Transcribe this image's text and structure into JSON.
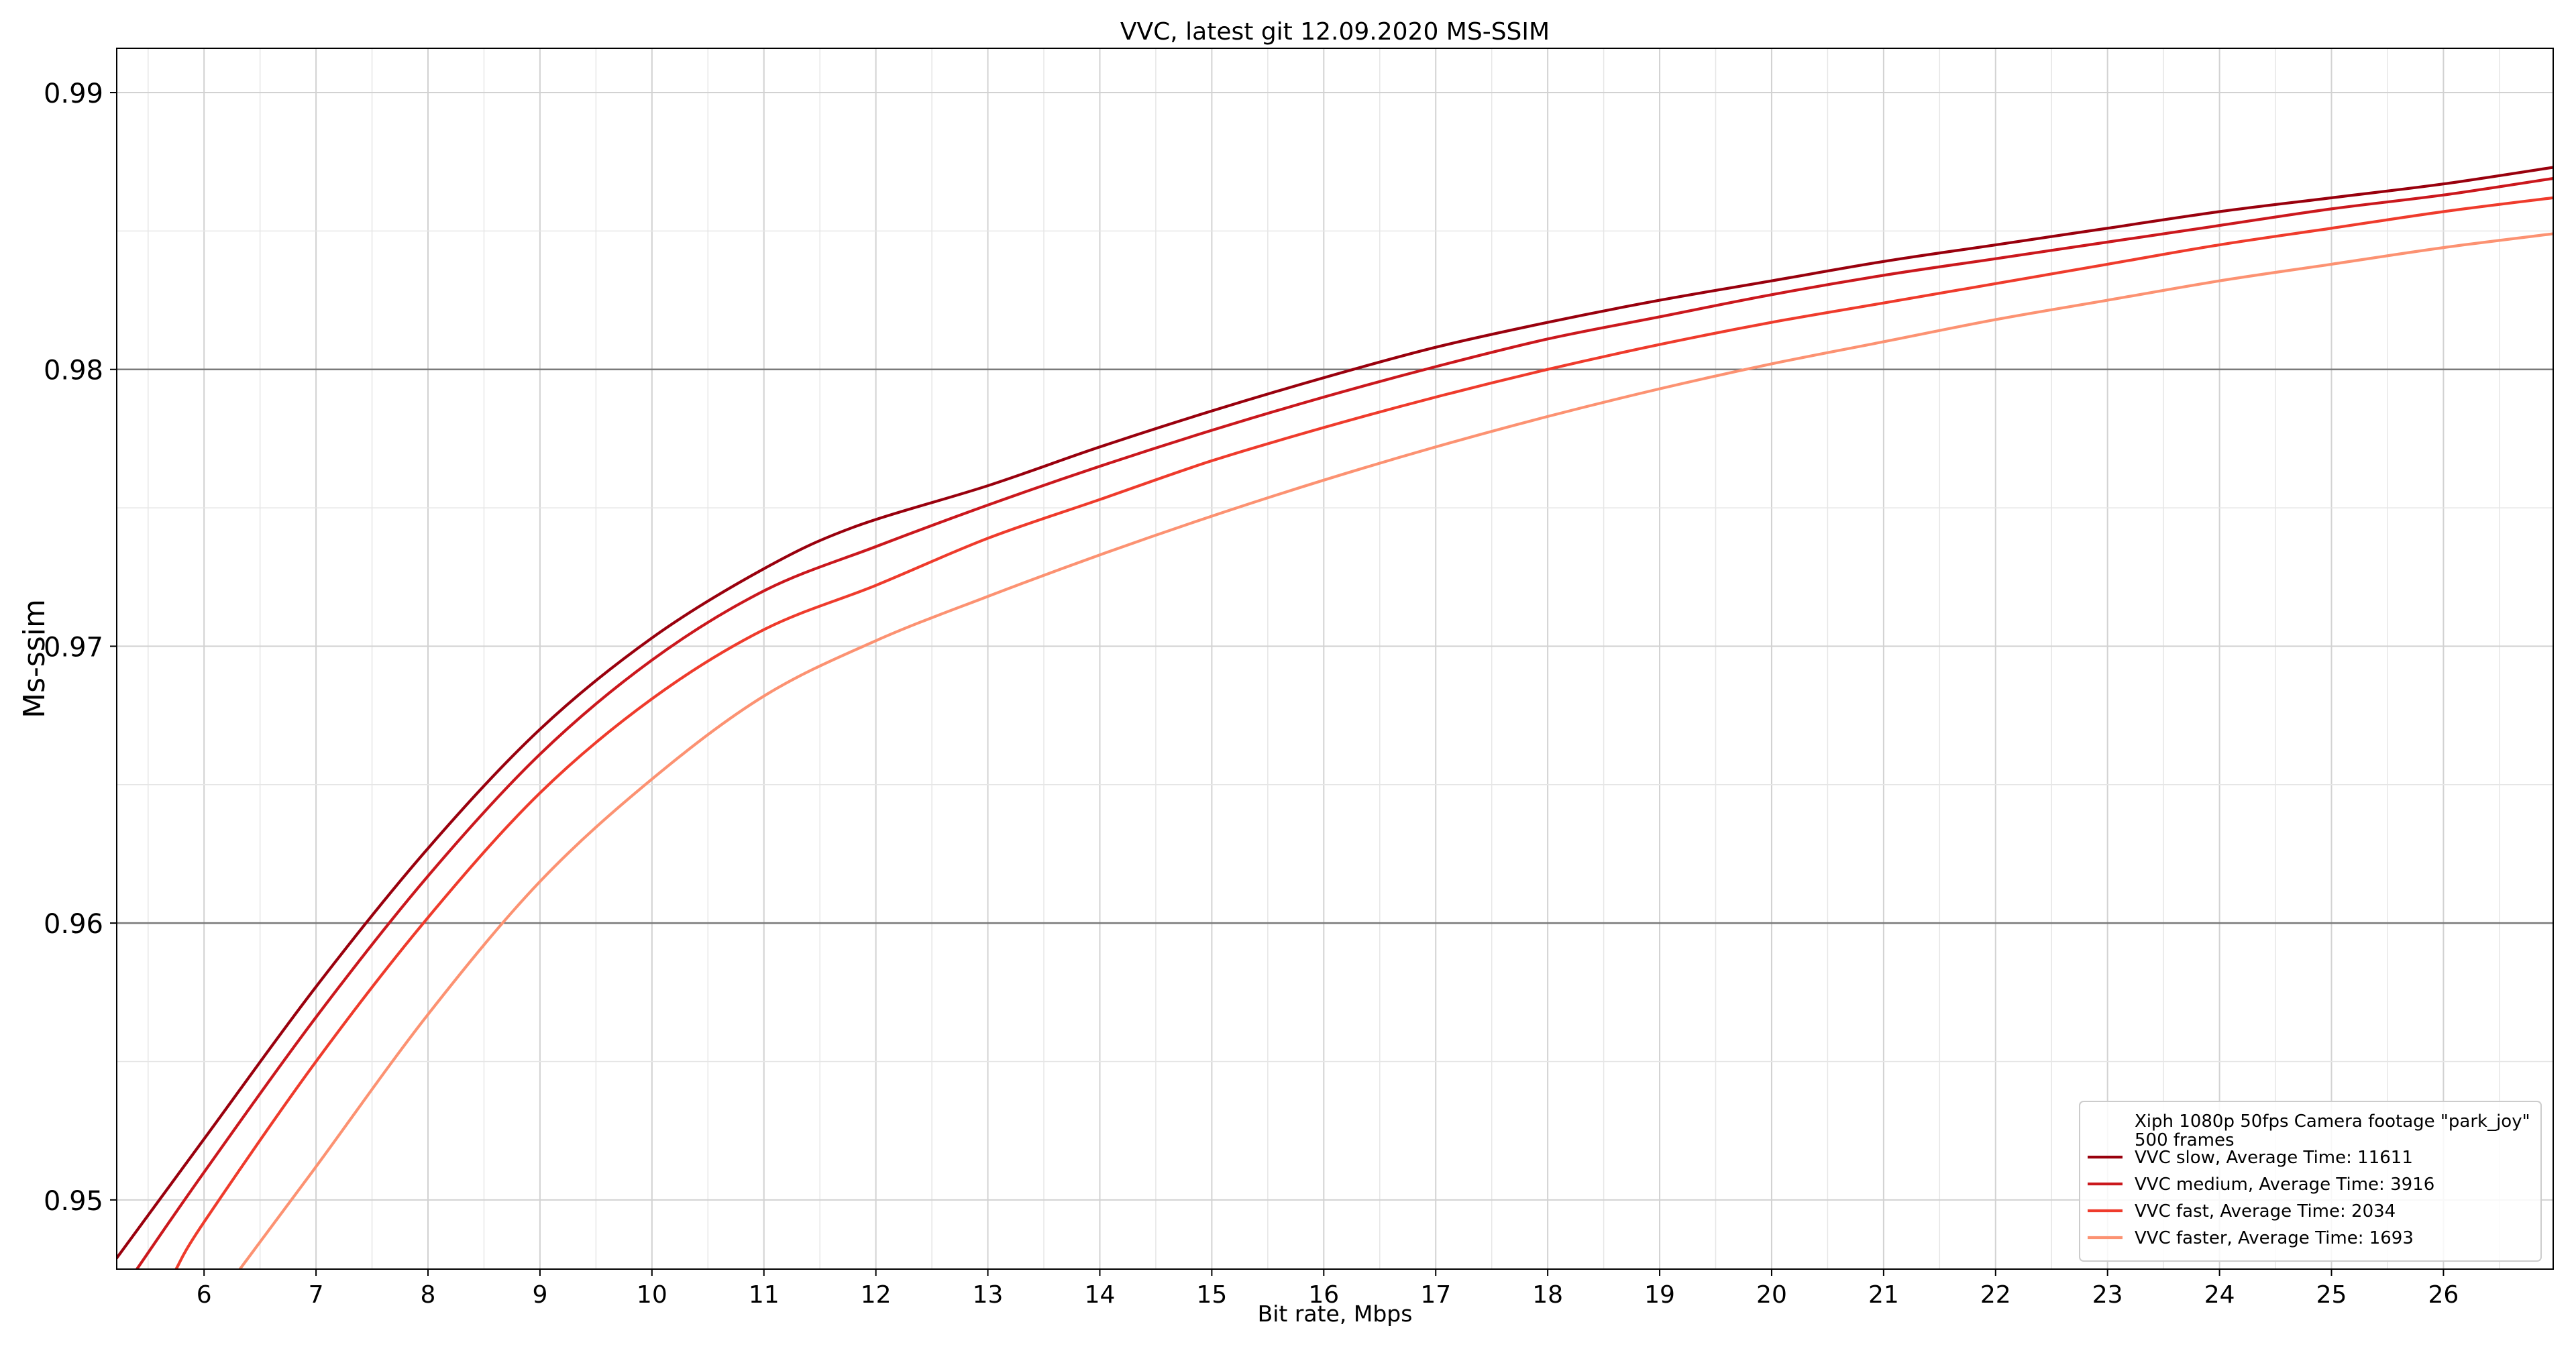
{
  "chart_data": {
    "type": "line",
    "title": "VVC, latest git 12.09.2020 MS-SSIM",
    "xlabel": "Bit rate, Mbps",
    "ylabel": "Ms-ssim",
    "xlim": [
      5.22,
      26.98
    ],
    "ylim": [
      0.9475,
      0.9916
    ],
    "x_ticks": [
      6,
      7,
      8,
      9,
      10,
      11,
      12,
      13,
      14,
      15,
      16,
      17,
      18,
      19,
      20,
      21,
      22,
      23,
      24,
      25,
      26
    ],
    "x_tick_labels": [
      "6",
      "7",
      "8",
      "9",
      "10",
      "11",
      "12",
      "13",
      "14",
      "15",
      "16",
      "17",
      "18",
      "19",
      "20",
      "21",
      "22",
      "23",
      "24",
      "25",
      "26"
    ],
    "y_ticks": [
      0.95,
      0.96,
      0.97,
      0.98,
      0.99
    ],
    "y_tick_labels": [
      "0.95",
      "0.96",
      "0.97",
      "0.98",
      "0.99"
    ],
    "x_minor_step": 0.5,
    "y_minor_step": 0.005,
    "grid": true,
    "legend_position": "bottom-right",
    "legend_header": [
      "Xiph 1080p 50fps Camera footage \"park_joy\"",
      "500 frames"
    ],
    "series": [
      {
        "name": "VVC slow, Average Time: 11611",
        "color": "#99000d",
        "x": [
          5.22,
          6.0,
          7.0,
          8.0,
          9.0,
          10.0,
          11.0,
          11.8,
          13.0,
          14.0,
          15.0,
          16.0,
          17.0,
          18.0,
          19.0,
          20.0,
          21.0,
          22.0,
          23.0,
          24.0,
          25.0,
          26.0,
          26.98
        ],
        "y": [
          0.9479,
          0.9522,
          0.9577,
          0.9627,
          0.967,
          0.9703,
          0.9728,
          0.9743,
          0.9758,
          0.9772,
          0.9785,
          0.9797,
          0.9808,
          0.9817,
          0.9825,
          0.9832,
          0.9839,
          0.9845,
          0.9851,
          0.9857,
          0.9862,
          0.9867,
          0.9873
        ]
      },
      {
        "name": "VVC medium, Average Time: 3916",
        "color": "#cb181d",
        "x": [
          5.4,
          6.0,
          7.0,
          8.0,
          9.0,
          10.0,
          11.0,
          12.0,
          13.0,
          14.0,
          15.0,
          16.0,
          17.0,
          18.0,
          19.0,
          20.0,
          21.0,
          22.0,
          23.0,
          24.0,
          25.0,
          26.0,
          26.98
        ],
        "y": [
          0.9475,
          0.951,
          0.9566,
          0.9617,
          0.9661,
          0.9695,
          0.972,
          0.9736,
          0.9751,
          0.9765,
          0.9778,
          0.979,
          0.9801,
          0.9811,
          0.9819,
          0.9827,
          0.9834,
          0.984,
          0.9846,
          0.9852,
          0.9858,
          0.9863,
          0.9869
        ]
      },
      {
        "name": "VVC fast, Average Time: 2034",
        "color": "#ef3b2c",
        "x": [
          5.75,
          6.0,
          7.0,
          8.0,
          9.0,
          10.0,
          11.0,
          12.0,
          13.0,
          14.0,
          15.0,
          16.0,
          17.0,
          18.0,
          19.0,
          20.0,
          21.0,
          22.0,
          23.0,
          24.0,
          25.0,
          26.0,
          26.98
        ],
        "y": [
          0.9475,
          0.9492,
          0.955,
          0.9602,
          0.9647,
          0.9681,
          0.9706,
          0.9722,
          0.9739,
          0.9753,
          0.9767,
          0.9779,
          0.979,
          0.98,
          0.9809,
          0.9817,
          0.9824,
          0.9831,
          0.9838,
          0.9845,
          0.9851,
          0.9857,
          0.9862
        ]
      },
      {
        "name": "VVC faster, Average Time: 1693",
        "color": "#fc9272",
        "x": [
          6.32,
          7.0,
          8.0,
          9.0,
          10.0,
          11.0,
          12.0,
          13.0,
          14.0,
          15.0,
          16.0,
          17.0,
          18.0,
          19.0,
          20.0,
          21.0,
          22.0,
          23.0,
          24.0,
          25.0,
          26.0,
          26.98
        ],
        "y": [
          0.9475,
          0.9512,
          0.9567,
          0.9615,
          0.9652,
          0.9682,
          0.9702,
          0.9718,
          0.9733,
          0.9747,
          0.976,
          0.9772,
          0.9783,
          0.9793,
          0.9802,
          0.981,
          0.9818,
          0.9825,
          0.9832,
          0.9838,
          0.9844,
          0.9849
        ]
      }
    ]
  }
}
